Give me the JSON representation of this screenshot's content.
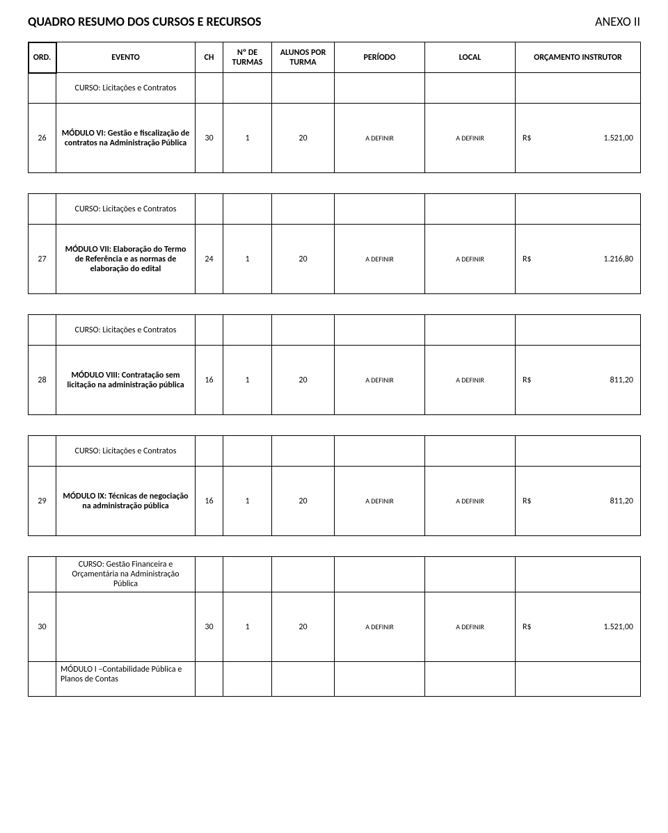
{
  "header": {
    "title": "QUADRO RESUMO DOS CURSOS E RECURSOS",
    "anexo": "ANEXO II"
  },
  "columns": {
    "ord": "ORD.",
    "evento": "EVENTO",
    "ch": "CH",
    "turmas": "Nº DE TURMAS",
    "alunos": "ALUNOS POR TURMA",
    "periodo": "PERÍODO",
    "local": "LOCAL",
    "orcamento": "ORÇAMENTO INSTRUTOR"
  },
  "sections": [
    {
      "curso": "CURSO: Licitações e Contratos",
      "ord": "26",
      "evento": "MÓDULO VI: Gestão e fiscalização de contratos na Administração Pública",
      "ch": "30",
      "turmas": "1",
      "alunos": "20",
      "periodo": "A DEFINIR",
      "local": "A DEFINIR",
      "currency": "R$",
      "value": "1.521,00"
    },
    {
      "curso": "CURSO: Licitações e Contratos",
      "ord": "27",
      "evento": "MÓDULO VII: Elaboração do Termo de Referência e as normas de elaboração do edital",
      "ch": "24",
      "turmas": "1",
      "alunos": "20",
      "periodo": "A DEFINIR",
      "local": "A DEFINIR",
      "currency": "R$",
      "value": "1.216,80"
    },
    {
      "curso": "CURSO: Licitações e Contratos",
      "ord": "28",
      "evento": "MÓDULO VIII: Contratação sem licitação na administração pública",
      "ch": "16",
      "turmas": "1",
      "alunos": "20",
      "periodo": "A DEFINIR",
      "local": "A DEFINIR",
      "currency": "R$",
      "value": "811,20"
    },
    {
      "curso": "CURSO: Licitações e Contratos",
      "ord": "29",
      "evento": "MÓDULO IX: Técnicas de negociação na administração pública",
      "ch": "16",
      "turmas": "1",
      "alunos": "20",
      "periodo": "A DEFINIR",
      "local": "A DEFINIR",
      "currency": "R$",
      "value": "811,20"
    },
    {
      "curso": "CURSO: Gestão Financeira e Orçamentária na Administração Pública",
      "ord": "30",
      "evento_below": "MÓDULO I –Contabilidade Pública e Planos de Contas",
      "ch": "30",
      "turmas": "1",
      "alunos": "20",
      "periodo": "A DEFINIR",
      "local": "A DEFINIR",
      "currency": "R$",
      "value": "1.521,00"
    }
  ]
}
